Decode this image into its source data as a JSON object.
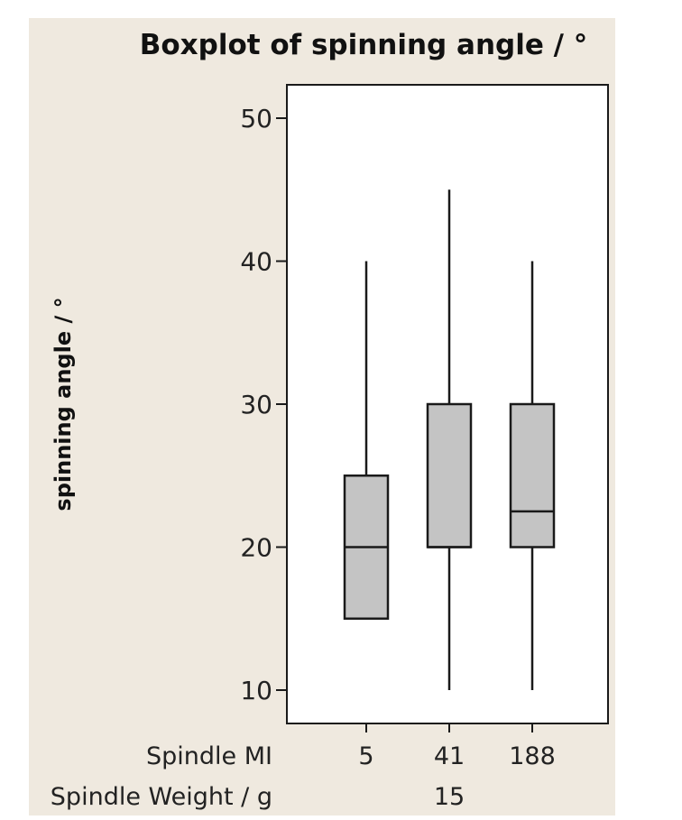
{
  "colors": {
    "page_background": "#efe9df",
    "plot_background": "#ffffff",
    "box_fill": "#c4c4c4",
    "stroke": "#1a1a1a"
  },
  "chart_data": {
    "type": "boxplot",
    "title": "Boxplot of spinning angle / °",
    "ylabel": "spinning angle / °",
    "ylim": [
      8,
      52.5
    ],
    "yticks": [
      10,
      20,
      30,
      40,
      50
    ],
    "grid": false,
    "x_rows": [
      {
        "label": "Spindle MI",
        "values": [
          "5",
          "41",
          "188"
        ]
      },
      {
        "label": "Spindle Weight / g",
        "values": [
          "15"
        ]
      }
    ],
    "categories": [
      "5",
      "41",
      "188"
    ],
    "boxes": [
      {
        "category": "5",
        "whisker_low": 15,
        "q1": 15,
        "median": 20,
        "q3": 25,
        "whisker_high": 40
      },
      {
        "category": "41",
        "whisker_low": 10,
        "q1": 20,
        "median": 20,
        "q3": 30,
        "whisker_high": 45
      },
      {
        "category": "188",
        "whisker_low": 10,
        "q1": 20,
        "median": 22.5,
        "q3": 30,
        "whisker_high": 40
      }
    ]
  }
}
